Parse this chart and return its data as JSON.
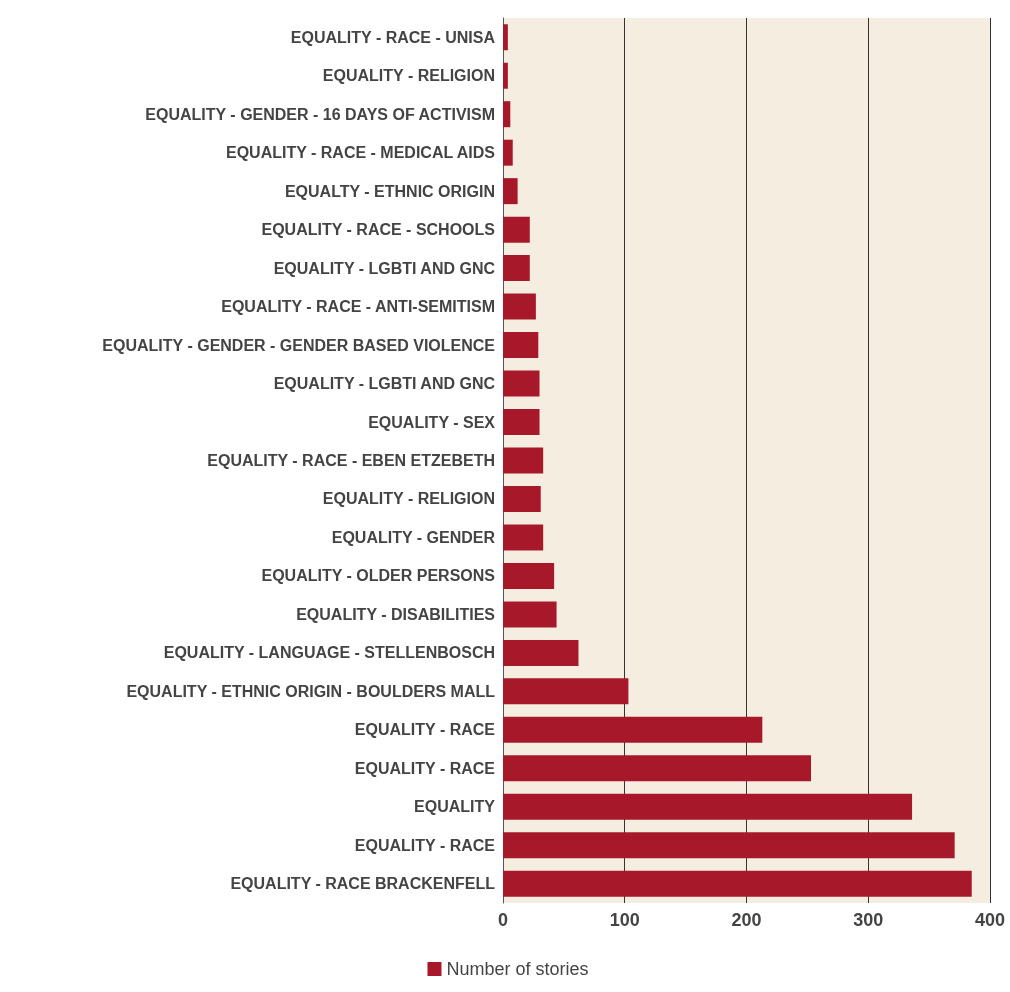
{
  "chart_data": {
    "type": "bar",
    "orientation": "horizontal",
    "categories": [
      "EQUALITY - RACE - UNISA",
      "EQUALITY - RELIGION",
      "EQUALITY - GENDER - 16 DAYS OF ACTIVISM",
      "EQUALITY - RACE - MEDICAL AIDS",
      "EQUALTY - ETHNIC ORIGIN",
      "EQUALITY - RACE - SCHOOLS",
      "EQUALITY - LGBTI AND GNC",
      "EQUALITY - RACE - ANTI-SEMITISM",
      "EQUALITY - GENDER - GENDER BASED VIOLENCE",
      "EQUALITY - LGBTI AND GNC",
      "EQUALITY - SEX",
      "EQUALITY - RACE - EBEN ETZEBETH",
      "EQUALITY - RELIGION",
      "EQUALITY - GENDER",
      "EQUALITY - OLDER PERSONS",
      "EQUALITY - DISABILITIES",
      "EQUALITY - LANGUAGE - STELLENBOSCH",
      "EQUALITY - ETHNIC ORIGIN - BOULDERS MALL",
      "EQUALITY - RACE",
      "EQUALITY - RACE",
      "EQUALITY",
      "EQUALITY - RACE",
      "EQUALITY - RACE BRACKENFELL"
    ],
    "series": [
      {
        "name": "Number of stories",
        "color": "#a8182b",
        "values": [
          4,
          4,
          6,
          8,
          12,
          22,
          22,
          27,
          29,
          30,
          30,
          33,
          31,
          33,
          42,
          44,
          62,
          103,
          213,
          253,
          336,
          371,
          385
        ]
      }
    ],
    "xlim": [
      0,
      400
    ],
    "xticks": [
      0,
      100,
      200,
      300,
      400
    ],
    "grid": "x",
    "legend": "bottom"
  }
}
